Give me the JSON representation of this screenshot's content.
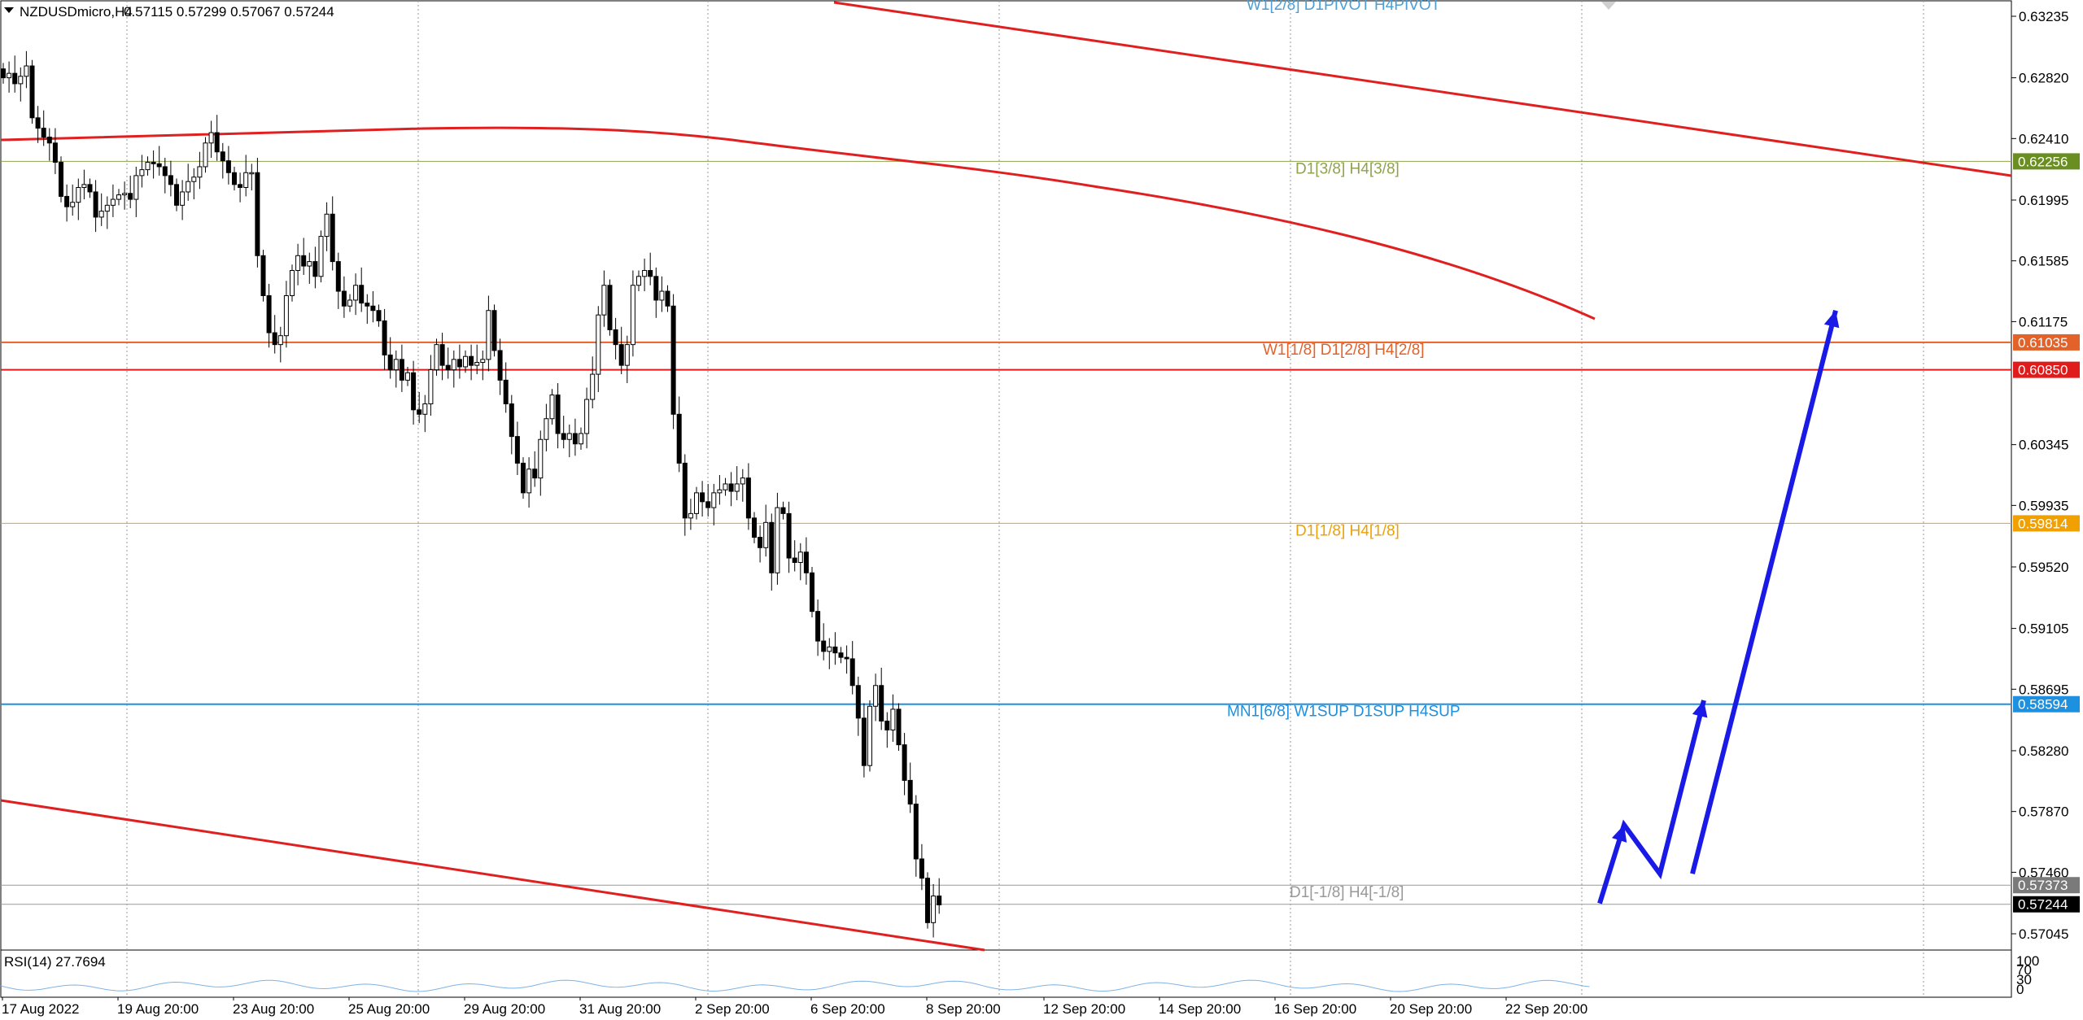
{
  "chart_header": {
    "symbol": "NZDUSDmicro,H4",
    "ohlc": "0.57115 0.57299 0.57067 0.57244"
  },
  "rsi_header": "RSI(14) 27.7694",
  "colors": {
    "bull_fill": "#ffffff",
    "bear_fill": "#000000",
    "trend_line": "#e02020",
    "projection": "#1a1ae6",
    "grid": "#9a9a9a"
  },
  "chart_data": {
    "type": "candlestick",
    "title": "NZDUSDmicro,H4",
    "x_axis_labels": [
      "17 Aug 2022",
      "19 Aug 20:00",
      "23 Aug 20:00",
      "25 Aug 20:00",
      "29 Aug 20:00",
      "31 Aug 20:00",
      "2 Sep 20:00",
      "6 Sep 20:00",
      "8 Sep 20:00",
      "12 Sep 20:00",
      "14 Sep 20:00",
      "16 Sep 20:00",
      "20 Sep 20:00",
      "22 Sep 20:00"
    ],
    "y_axis_ticks": [
      "0.63235",
      "0.62820",
      "0.62410",
      "0.61995",
      "0.61585",
      "0.61175",
      "0.60345",
      "0.59935",
      "0.59520",
      "0.59105",
      "0.58695",
      "0.58280",
      "0.57870",
      "0.57460",
      "0.57045"
    ],
    "ylim": [
      0.5684,
      0.6335
    ],
    "price_tags": [
      {
        "value": "0.62256",
        "color": "#6b8e23"
      },
      {
        "value": "0.61035",
        "color": "#e2622a"
      },
      {
        "value": "0.60850",
        "color": "#e01b1b"
      },
      {
        "value": "0.59814",
        "color": "#f0a000"
      },
      {
        "value": "0.58594",
        "color": "#1e90e0"
      },
      {
        "value": "0.57373",
        "color": "#7a7a7a"
      },
      {
        "value": "0.57244",
        "color": "#000000"
      }
    ],
    "level_lines": [
      {
        "value": 0.62256,
        "label": "D1[3/8] H4[3/8]",
        "color": "#8fa24f"
      },
      {
        "value": 0.61035,
        "label": "W1[1/8] D1[2/8] H4[2/8]",
        "color": "#e2622a"
      },
      {
        "value": 0.6085,
        "label": "",
        "color": "#e01b1b"
      },
      {
        "value": 0.59814,
        "label": "D1[1/8] H4[1/8]",
        "color": "#f0a000"
      },
      {
        "value": 0.58594,
        "label": "MN1[6/8] W1SUP D1SUP H4SUP",
        "color": "#1e90e0"
      },
      {
        "value": 0.57373,
        "label": "D1[-1/8] H4[-1/8]",
        "color": "#999999"
      },
      {
        "value": 0.57244,
        "label": "",
        "color": "#999999"
      }
    ],
    "top_label": "W1[2/8] D1PIVOT H4PIVOT",
    "close_series": [
      0.6282,
      0.6285,
      0.6278,
      0.6283,
      0.629,
      0.6255,
      0.6248,
      0.6242,
      0.6238,
      0.6225,
      0.6202,
      0.6195,
      0.6198,
      0.6208,
      0.621,
      0.6205,
      0.6188,
      0.6192,
      0.6196,
      0.62,
      0.6203,
      0.6204,
      0.62,
      0.6216,
      0.622,
      0.6225,
      0.6224,
      0.6222,
      0.6216,
      0.621,
      0.6196,
      0.6205,
      0.6212,
      0.6215,
      0.6222,
      0.6238,
      0.6245,
      0.6232,
      0.6226,
      0.6218,
      0.621,
      0.6208,
      0.6218,
      0.6218,
      0.6162,
      0.6135,
      0.611,
      0.6102,
      0.6108,
      0.6135,
      0.6152,
      0.6162,
      0.6155,
      0.6158,
      0.6148,
      0.6175,
      0.619,
      0.6158,
      0.6138,
      0.6128,
      0.6132,
      0.6142,
      0.613,
      0.6128,
      0.6125,
      0.6118,
      0.6095,
      0.6085,
      0.6092,
      0.6078,
      0.6083,
      0.6058,
      0.6055,
      0.6062,
      0.6085,
      0.6102,
      0.6088,
      0.6085,
      0.6092,
      0.6087,
      0.6094,
      0.6088,
      0.609,
      0.6092,
      0.6125,
      0.6098,
      0.6078,
      0.6062,
      0.604,
      0.6022,
      0.6002,
      0.6018,
      0.6012,
      0.6038,
      0.6052,
      0.6068,
      0.6042,
      0.6038,
      0.6042,
      0.6035,
      0.6042,
      0.6065,
      0.6082,
      0.6122,
      0.6142,
      0.6112,
      0.6102,
      0.6088,
      0.6102,
      0.6142,
      0.6148,
      0.6152,
      0.6148,
      0.6132,
      0.6138,
      0.6128,
      0.6055,
      0.6022,
      0.5985,
      0.5988,
      0.6002,
      0.5996,
      0.5992,
      0.6002,
      0.6004,
      0.6008,
      0.6003,
      0.6008,
      0.6012,
      0.5985,
      0.5972,
      0.5965,
      0.5982,
      0.5948,
      0.5992,
      0.5988,
      0.5958,
      0.5955,
      0.5962,
      0.5948,
      0.5922,
      0.5902,
      0.5895,
      0.5898,
      0.5894,
      0.5891,
      0.589,
      0.5872,
      0.585,
      0.5818,
      0.5858,
      0.5872,
      0.5848,
      0.5842,
      0.5856,
      0.5832,
      0.5808,
      0.5792,
      0.5755,
      0.5742,
      0.5712,
      0.573,
      0.5724
    ],
    "trend_lines": [
      {
        "from": [
          "bar 0",
          0.6245
        ],
        "to": [
          "bar 40",
          0.6248
        ],
        "note": "upper curve"
      },
      {
        "from": [
          "bar 40",
          0.6248
        ],
        "to": [
          "bar 193",
          0.6112
        ],
        "note": "descending curve"
      }
    ],
    "projection_path": [
      0.5725,
      0.5778,
      0.5745,
      0.5862,
      0.5745,
      0.6125
    ],
    "rsi": {
      "name": "RSI(14)",
      "value": 27.7694,
      "axis_ticks": [
        "100",
        "70",
        "30",
        "0"
      ]
    }
  }
}
